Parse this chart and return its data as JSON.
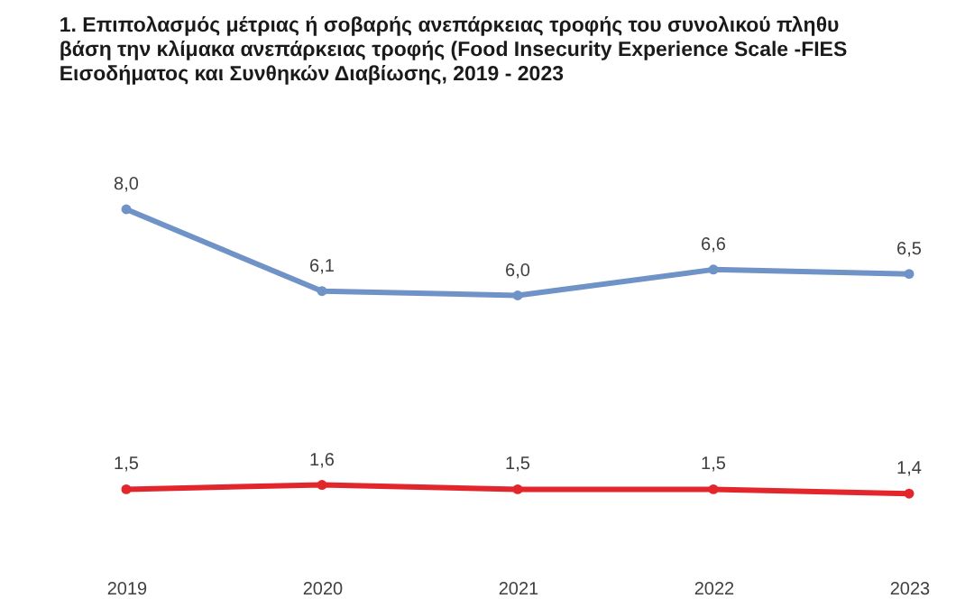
{
  "chart_data": {
    "type": "line",
    "title": [
      "1.  Επιπολασμός μέτριας ή σοβαρής ανεπάρκειας τροφής του συνολικού πληθυ",
      "βάση την κλίμακα ανεπάρκειας τροφής (Food Insecurity Experience Scale -FIES",
      "Εισοδήματος και Συνθηκών Διαβίωσης, 2019 - 2023"
    ],
    "categories": [
      "2019",
      "2020",
      "2021",
      "2022",
      "2023"
    ],
    "series": [
      {
        "color": "#6f93c6",
        "values": [
          8.0,
          6.1,
          6.0,
          6.6,
          6.5
        ],
        "value_labels": [
          "8,0",
          "6,1",
          "6,0",
          "6,6",
          "6,5"
        ]
      },
      {
        "color": "#e3262b",
        "values": [
          1.5,
          1.6,
          1.5,
          1.5,
          1.4
        ],
        "value_labels": [
          "1,5",
          "1,6",
          "1,5",
          "1,5",
          "1,4"
        ]
      }
    ],
    "marker": "circle",
    "grid": false,
    "legend": false
  }
}
